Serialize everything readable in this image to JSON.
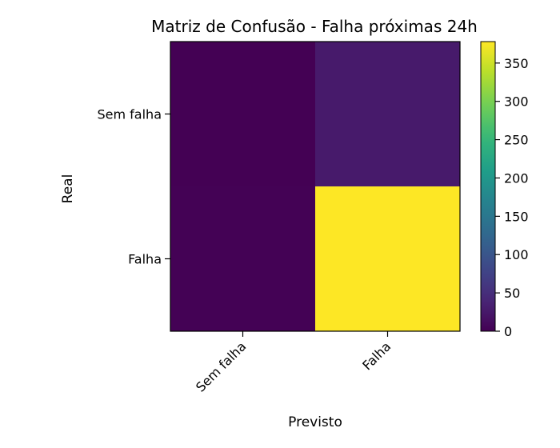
{
  "chart_data": {
    "type": "heatmap",
    "title": "Matriz de Confusão - Falha próximas 24h",
    "xlabel": "Previsto",
    "ylabel": "Real",
    "x_categories": [
      "Sem falha",
      "Falha"
    ],
    "y_categories": [
      "Sem falha",
      "Falha"
    ],
    "values": [
      [
        0,
        27
      ],
      [
        1,
        378
      ]
    ],
    "colormap": "viridis",
    "colorbar": {
      "min": 0,
      "max": 378,
      "ticks": [
        0,
        50,
        100,
        150,
        200,
        250,
        300,
        350
      ],
      "tick_labels": [
        "0",
        "50",
        "100",
        "150",
        "200",
        "250",
        "300",
        "350"
      ]
    },
    "grid": false
  }
}
